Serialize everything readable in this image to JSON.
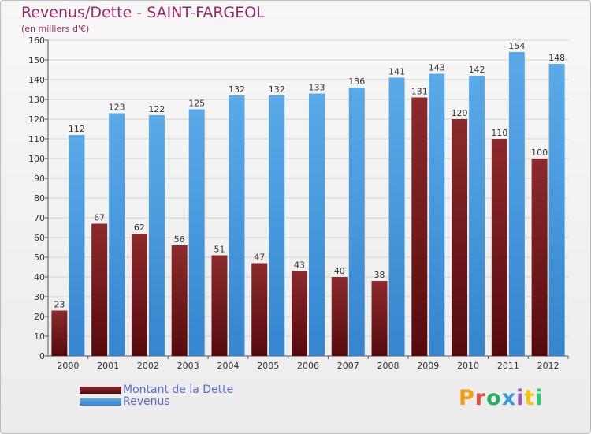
{
  "title": "Revenus/Dette - SAINT-FARGEOL",
  "subtitle": "(en milliers d'€)",
  "logo": "Proxiti",
  "colors": {
    "dette": "#7a1a1c",
    "revenus": "#4a9fe3",
    "text": "#9b2a5c",
    "legend_text": "#5b6bd6"
  },
  "chart_data": {
    "type": "bar",
    "categories": [
      "2000",
      "2001",
      "2002",
      "2003",
      "2004",
      "2005",
      "2006",
      "2007",
      "2008",
      "2009",
      "2010",
      "2011",
      "2012"
    ],
    "series": [
      {
        "name": "Montant de la Dette",
        "values": [
          23,
          67,
          62,
          56,
          51,
          47,
          43,
          40,
          38,
          131,
          120,
          110,
          100
        ]
      },
      {
        "name": "Revenus",
        "values": [
          112,
          123,
          122,
          125,
          132,
          132,
          133,
          136,
          141,
          143,
          142,
          154,
          148
        ]
      }
    ],
    "ylim": [
      0,
      160
    ],
    "yticks": [
      0,
      10,
      20,
      30,
      40,
      50,
      60,
      70,
      80,
      90,
      100,
      110,
      120,
      130,
      140,
      150,
      160
    ],
    "grid": true,
    "legend": "bottom-left"
  }
}
